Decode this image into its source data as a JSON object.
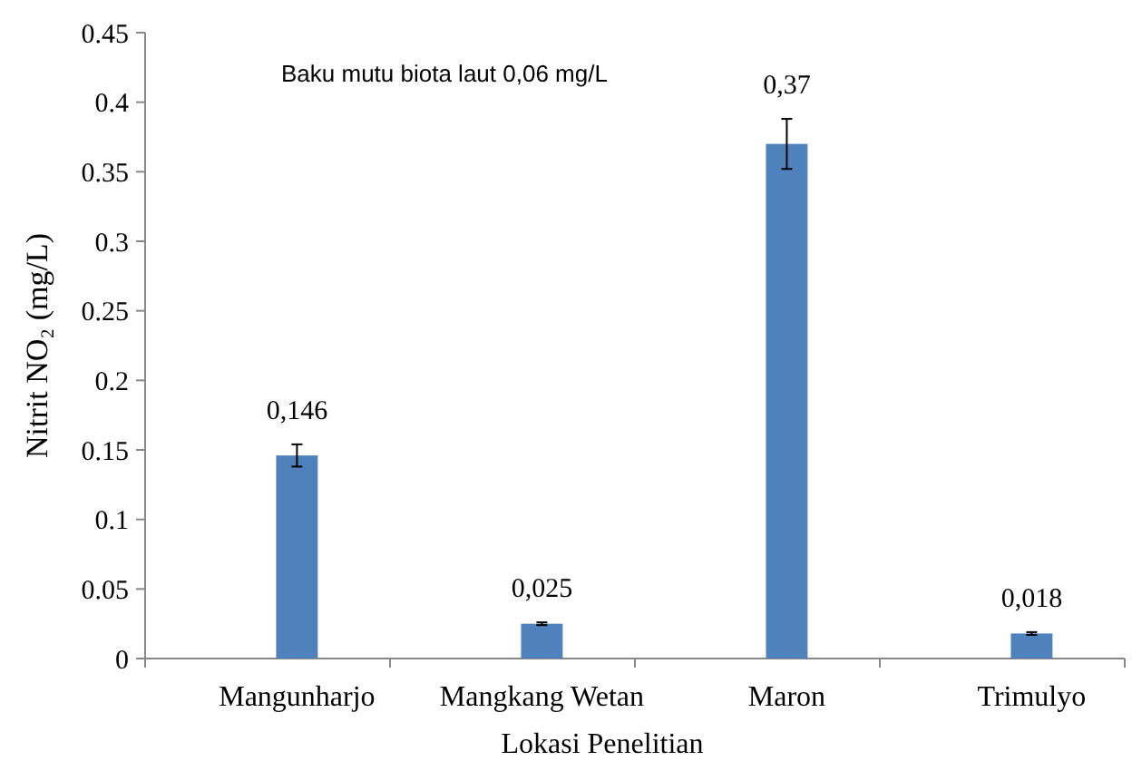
{
  "chart_data": {
    "type": "bar",
    "xlabel": "Lokasi Penelitian",
    "ylabel": "Nitrit NO₂ (mg/L)",
    "categories": [
      "Mangunharjo",
      "Mangkang Wetan",
      "Maron",
      "Trimulyo"
    ],
    "values": [
      0.146,
      0.025,
      0.37,
      0.018
    ],
    "value_labels": [
      "0,146",
      "0,025",
      "0,37",
      "0,018"
    ],
    "errors": [
      0.008,
      0.001,
      0.018,
      0.001
    ],
    "color": "#4f81bd",
    "ylim": [
      0,
      0.45
    ],
    "yticks": [
      0,
      0.05,
      0.1,
      0.15,
      0.2,
      0.25,
      0.3,
      0.35,
      0.4,
      0.45
    ],
    "grid": false,
    "annotations": [
      "Baku mutu biota laut 0,06 mg/L"
    ]
  }
}
